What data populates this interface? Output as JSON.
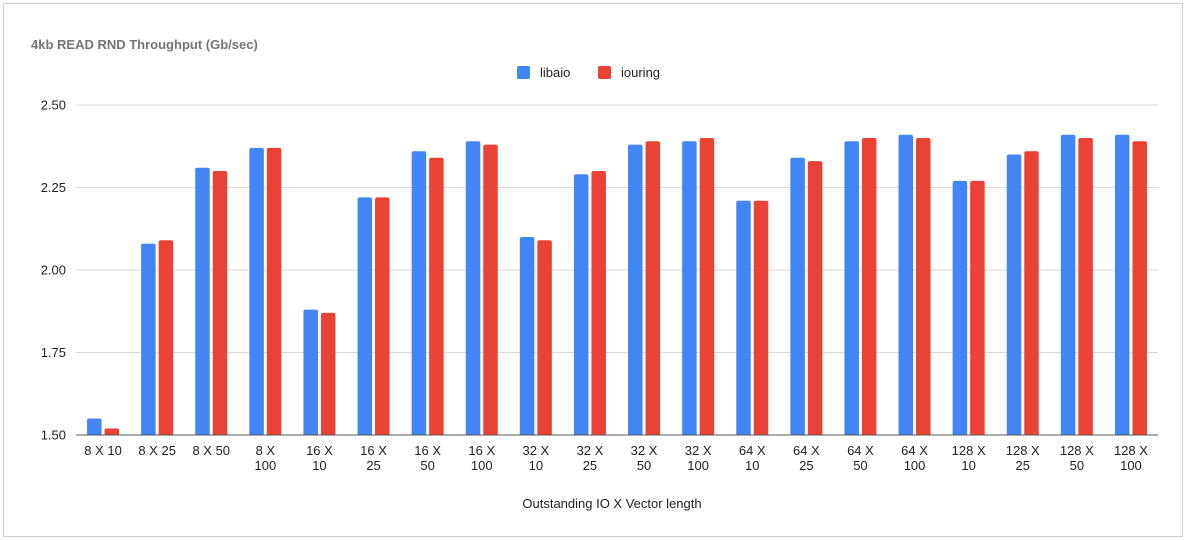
{
  "chart_data": {
    "type": "bar",
    "title": "4kb READ RND  Throughput (Gb/sec)",
    "xlabel": "Outstanding IO X Vector length",
    "ylabel": "",
    "ylim": [
      1.5,
      2.5
    ],
    "yticks": [
      "1.50",
      "1.75",
      "2.00",
      "2.25",
      "2.50"
    ],
    "grid": true,
    "legend_position": "top-center",
    "categories": [
      [
        "8 X 10"
      ],
      [
        "8 X 25"
      ],
      [
        "8 X 50"
      ],
      [
        "8 X",
        "100"
      ],
      [
        "16 X",
        "10"
      ],
      [
        "16 X",
        "25"
      ],
      [
        "16 X",
        "50"
      ],
      [
        "16 X",
        "100"
      ],
      [
        "32 X",
        "10"
      ],
      [
        "32 X",
        "25"
      ],
      [
        "32 X",
        "50"
      ],
      [
        "32 X",
        "100"
      ],
      [
        "64 X",
        "10"
      ],
      [
        "64 X",
        "25"
      ],
      [
        "64 X",
        "50"
      ],
      [
        "64 X",
        "100"
      ],
      [
        "128 X",
        "10"
      ],
      [
        "128 X",
        "25"
      ],
      [
        "128 X",
        "50"
      ],
      [
        "128 X",
        "100"
      ]
    ],
    "series": [
      {
        "name": "libaio",
        "color": "#4285f4",
        "values": [
          1.55,
          2.08,
          2.31,
          2.37,
          1.88,
          2.22,
          2.36,
          2.39,
          2.1,
          2.29,
          2.38,
          2.39,
          2.21,
          2.34,
          2.39,
          2.41,
          2.27,
          2.35,
          2.41,
          2.41
        ]
      },
      {
        "name": "iouring",
        "color": "#ea4335",
        "values": [
          1.52,
          2.09,
          2.3,
          2.37,
          1.87,
          2.22,
          2.34,
          2.38,
          2.09,
          2.3,
          2.39,
          2.4,
          2.21,
          2.33,
          2.4,
          2.4,
          2.27,
          2.36,
          2.4,
          2.39
        ]
      }
    ]
  }
}
